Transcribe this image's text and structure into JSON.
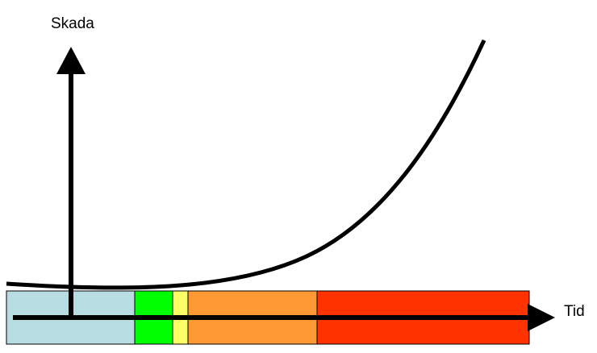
{
  "axes": {
    "y_label": "Skada",
    "x_label": "Tid"
  },
  "timeline": {
    "segments": [
      {
        "name": "light-blue-segment",
        "color": "#b7dde3"
      },
      {
        "name": "green-segment",
        "color": "#00ff00"
      },
      {
        "name": "yellow-segment",
        "color": "#ffff66"
      },
      {
        "name": "orange-segment",
        "color": "#ff9933"
      },
      {
        "name": "red-segment",
        "color": "#ff3300"
      }
    ],
    "border_color": "#000000"
  },
  "curve": {
    "color": "#000000",
    "shape": "exponential-growth"
  }
}
